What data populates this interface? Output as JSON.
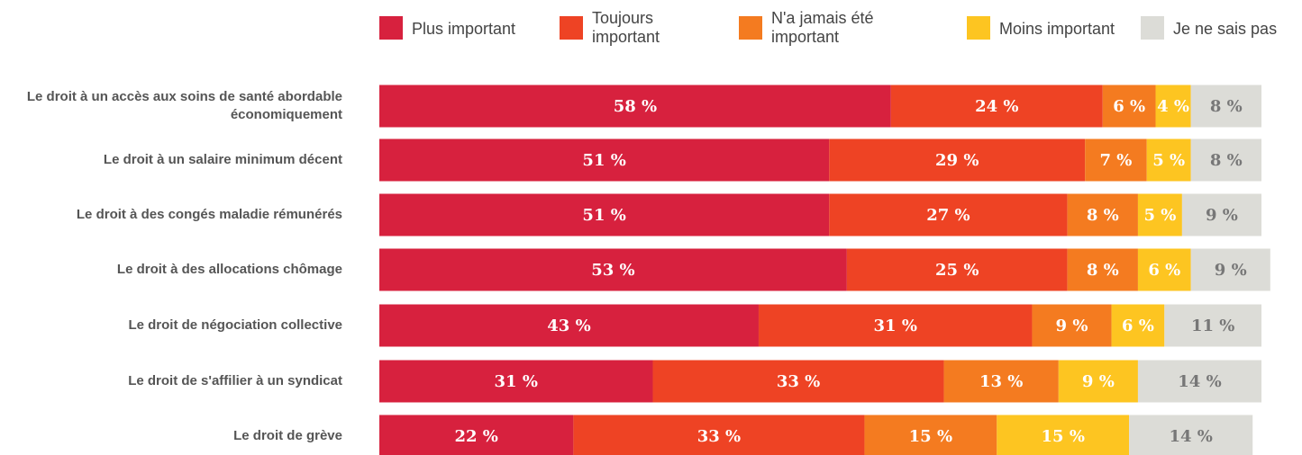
{
  "chart_data": {
    "type": "stacked_bar_horizontal",
    "categories": [
      "Le droit à un accès aux soins de santé abordable économiquement",
      "Le droit à un salaire minimum décent",
      "Le droit à des congés maladie rémunérés",
      "Le droit à des allocations chômage",
      "Le droit de négociation collective",
      "Le droit de s'affilier à un syndicat",
      "Le droit de grève"
    ],
    "xlim": [
      0,
      100
    ],
    "series": [
      {
        "name": "Plus important",
        "color": "#d7213e",
        "values": [
          58,
          51,
          51,
          53,
          43,
          31,
          22
        ],
        "value_labels": [
          "58 %",
          "51 %",
          "51 %",
          "53 %",
          "43 %",
          "31 %",
          "22 %"
        ]
      },
      {
        "name": "Toujours important",
        "color": "#ee4324",
        "values": [
          24,
          29,
          27,
          25,
          31,
          33,
          33
        ],
        "value_labels": [
          "24 %",
          "29 %",
          "27 %",
          "25 %",
          "31 %",
          "33 %",
          "33 %"
        ]
      },
      {
        "name": "N'a jamais été important",
        "color": "#f47b20",
        "values": [
          6,
          7,
          8,
          8,
          9,
          13,
          15
        ],
        "value_labels": [
          "6 %",
          "7 %",
          "8 %",
          "8 %",
          "9 %",
          "13 %",
          "15 %"
        ]
      },
      {
        "name": "Moins important",
        "color": "#fdc521",
        "values": [
          4,
          5,
          5,
          6,
          6,
          9,
          15
        ],
        "value_labels": [
          "4 %",
          "5 %",
          "5 %",
          "6 %",
          "6 %",
          "9 %",
          "15 %"
        ]
      },
      {
        "name": "Je ne sais pas",
        "color": "#dcdcd7",
        "values": [
          8,
          8,
          9,
          9,
          11,
          14,
          14
        ],
        "value_labels": [
          "8 %",
          "8 %",
          "9 %",
          "9 %",
          "11 %",
          "14 %",
          "14 %"
        ]
      }
    ]
  }
}
